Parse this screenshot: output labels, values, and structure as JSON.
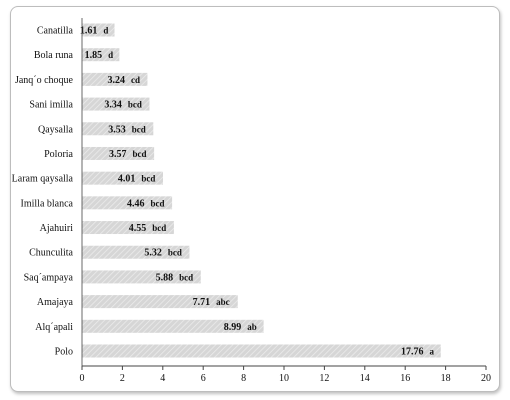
{
  "chart_data": {
    "type": "bar",
    "orientation": "horizontal",
    "categories": [
      "Canatilla",
      "Bola runa",
      "Janq´o choque",
      "Sani imilla",
      "Qaysalla",
      "Poloria",
      "Laram qaysalla",
      "Imilla blanca",
      "Ajahuiri",
      "Chunculita",
      "Saq´ampaya",
      "Amajaya",
      "Alq´apali",
      "Polo"
    ],
    "values": [
      1.61,
      1.85,
      3.24,
      3.34,
      3.53,
      3.57,
      4.01,
      4.46,
      4.55,
      5.32,
      5.88,
      7.71,
      8.99,
      17.76
    ],
    "value_labels": [
      "1.61",
      "1.85",
      "3.24",
      "3.34",
      "3.53",
      "3.57",
      "4.01",
      "4.46",
      "4.55",
      "5.32",
      "5.88",
      "7.71",
      "8.99",
      "17.76"
    ],
    "group_letters": [
      "d",
      "d",
      "cd",
      "bcd",
      "bcd",
      "bcd",
      "bcd",
      "bcd",
      "bcd",
      "bcd",
      "bcd",
      "abc",
      "ab",
      "a"
    ],
    "xticks": [
      "0",
      "2",
      "4",
      "6",
      "8",
      "10",
      "12",
      "14",
      "16",
      "18",
      "20"
    ],
    "xlim": [
      0,
      20
    ],
    "title": "",
    "xlabel": "",
    "ylabel": "",
    "grid": false,
    "legend": "none",
    "bar_color": "#d9d9d9",
    "bar_stripe_color": "#ececec",
    "axis_color": "#444444"
  }
}
